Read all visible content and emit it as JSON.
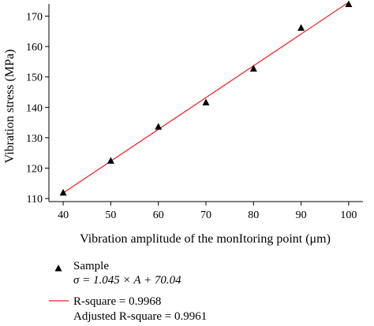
{
  "chart_data": {
    "type": "scatter",
    "xlabel": "Vibration amplitude of the monItoring point (μm)",
    "ylabel": "Vibration stress (MPa)",
    "xlim": [
      37,
      103
    ],
    "ylim": [
      109,
      174
    ],
    "x_ticks": [
      40,
      50,
      60,
      70,
      80,
      90,
      100
    ],
    "y_ticks": [
      110,
      120,
      130,
      140,
      150,
      160,
      170
    ],
    "grid": false,
    "legend_position": "bottom",
    "series": [
      {
        "name": "Sample",
        "kind": "scatter",
        "marker": "triangle",
        "color": "#000000",
        "x": [
          40,
          50,
          60,
          70,
          80,
          90,
          100
        ],
        "y": [
          112,
          122.5,
          133.7,
          141.7,
          152.8,
          166.2,
          174
        ]
      },
      {
        "kind": "line",
        "color": "#e8202a",
        "x": [
          40,
          100
        ],
        "y": [
          111.84,
          174.54
        ]
      }
    ],
    "legend": {
      "sample_label": "Sample",
      "equation": "σ = 1.045 × A + 70.04",
      "rsquare": "R-square = 0.9968",
      "adj_rsquare": "Adjusted R-square = 0.9961"
    }
  }
}
